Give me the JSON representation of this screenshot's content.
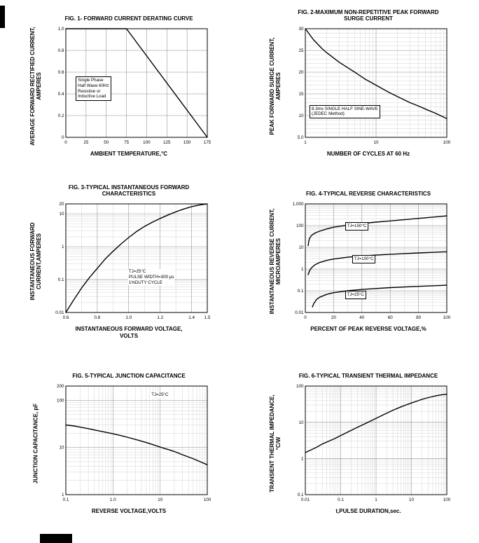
{
  "page": {
    "background": "#ffffff",
    "curve_color": "#000000",
    "grid_major_color": "#8d8d8d",
    "grid_minor_color": "#c9c9c9"
  },
  "chart_data": [
    {
      "type": "line",
      "title": "FIG. 1- FORWARD CURRENT DERATING CURVE",
      "xlabel": "AMBIENT TEMPERATURE,°C",
      "ylabel": "AVERAGE FORWARD RECTIFIED CURRENT,\nAMPERES",
      "x_axis": {
        "scale": "linear",
        "min": 0,
        "max": 175,
        "ticks": [
          0,
          25,
          50,
          75,
          100,
          125,
          150,
          175
        ],
        "tick_labels": [
          "0",
          "25",
          "50",
          "75",
          "100",
          "125",
          "150",
          "175"
        ]
      },
      "y_axis": {
        "scale": "linear",
        "min": 0,
        "max": 1.0,
        "ticks": [
          0,
          0.2,
          0.4,
          0.6,
          0.8,
          1.0
        ],
        "tick_labels": [
          "0",
          "0.2",
          "0.4",
          "0.6",
          "0.8",
          "1.0"
        ]
      },
      "series": [
        {
          "name": "derating",
          "points": [
            [
              0,
              1.0
            ],
            [
              75,
              1.0
            ],
            [
              175,
              0
            ]
          ]
        }
      ],
      "annotations": [
        {
          "lines": [
            "Single Phase",
            "Half Wave 60Hz",
            "Resistive or",
            "Inductive Load"
          ],
          "fx": 0.07,
          "fy": 0.44,
          "boxed": true
        }
      ]
    },
    {
      "type": "line",
      "title": "FIG. 2-MAXIMUM NON-REPETITIVE PEAK FORWARD\nSURGE CURRENT",
      "xlabel": "NUMBER OF CYCLES AT 60 Hz",
      "ylabel": "PEAK  FORWARD SURGE CURRENT,\nAMPERES",
      "x_axis": {
        "scale": "log",
        "min": 1,
        "max": 100,
        "ticks": [
          1,
          10,
          100
        ],
        "tick_labels": [
          "1",
          "10",
          "100"
        ]
      },
      "y_axis": {
        "scale": "linear",
        "min": 5,
        "max": 30,
        "ticks": [
          5,
          10,
          15,
          20,
          25,
          30
        ],
        "tick_labels": [
          "5.0",
          "10",
          "15",
          "20",
          "25",
          "30"
        ],
        "minor_step": 1
      },
      "series": [
        {
          "name": "surge-current",
          "points": [
            [
              1,
              30
            ],
            [
              1.3,
              27.5
            ],
            [
              1.7,
              25.5
            ],
            [
              2,
              24.5
            ],
            [
              3,
              22.3
            ],
            [
              4,
              21
            ],
            [
              5,
              20
            ],
            [
              7,
              18.4
            ],
            [
              10,
              17
            ],
            [
              15,
              15.4
            ],
            [
              20,
              14.4
            ],
            [
              30,
              13
            ],
            [
              40,
              12.2
            ],
            [
              50,
              11.5
            ],
            [
              70,
              10.5
            ],
            [
              100,
              9.3
            ]
          ]
        }
      ],
      "annotations": [
        {
          "lines": [
            "8.3ms SINGLE HALF SINE-WAVE",
            "(JEDEC Method)"
          ],
          "fx": 0.03,
          "fy": 0.7,
          "boxed": true
        }
      ]
    },
    {
      "type": "line",
      "title": "FIG. 3-TYPICAL INSTANTANEOUS FORWARD\nCHARACTERISTICS",
      "xlabel": "INSTANTANEOUS FORWARD VOLTAGE,\nVOLTS",
      "ylabel": "INSTANTANEOUS FORWARD\nCURRENT,AMPERES",
      "x_axis": {
        "scale": "linear",
        "min": 0.6,
        "max": 1.5,
        "ticks": [
          0.6,
          0.8,
          1.0,
          1.2,
          1.4,
          1.5
        ],
        "tick_labels": [
          "0.6",
          "0.8",
          "1.0",
          "1.2",
          "1.4",
          "1.5"
        ],
        "minor_step": 0.1
      },
      "y_axis": {
        "scale": "log",
        "min": 0.01,
        "max": 20,
        "ticks": [
          0.01,
          0.1,
          1,
          10,
          20
        ],
        "tick_labels": [
          "0.01",
          "0.1",
          "1",
          "10",
          "20"
        ]
      },
      "series": [
        {
          "name": "forward-characteristic",
          "points": [
            [
              0.6,
              0.01
            ],
            [
              0.65,
              0.024
            ],
            [
              0.7,
              0.055
            ],
            [
              0.75,
              0.115
            ],
            [
              0.8,
              0.22
            ],
            [
              0.85,
              0.42
            ],
            [
              0.9,
              0.72
            ],
            [
              0.95,
              1.2
            ],
            [
              1.0,
              1.9
            ],
            [
              1.05,
              2.9
            ],
            [
              1.1,
              4.1
            ],
            [
              1.15,
              5.5
            ],
            [
              1.2,
              7.2
            ],
            [
              1.25,
              9.2
            ],
            [
              1.3,
              11.5
            ],
            [
              1.35,
              14
            ],
            [
              1.4,
              16.5
            ],
            [
              1.45,
              18.5
            ],
            [
              1.5,
              20
            ]
          ]
        }
      ],
      "annotations": [
        {
          "lines": [
            "TJ=25°C",
            "PULSE WIDTH=300 μs",
            "1%DUTY CYCLE"
          ],
          "fx": 0.44,
          "fy": 0.6,
          "boxed": false
        }
      ]
    },
    {
      "type": "line",
      "title": "FIG. 4-TYPICAL REVERSE CHARACTERISTICS",
      "xlabel": "PERCENT OF PEAK REVERSE VOLTAGE,%",
      "ylabel": "INSTANTANEOUS REVERSE CURRENT,\nMICROAMPERES",
      "x_axis": {
        "scale": "linear",
        "min": 0,
        "max": 100,
        "ticks": [
          0,
          20,
          40,
          60,
          80,
          100
        ],
        "tick_labels": [
          "0",
          "20",
          "40",
          "60",
          "80",
          "100"
        ],
        "minor_step": 10
      },
      "y_axis": {
        "scale": "log",
        "min": 0.01,
        "max": 1000,
        "ticks": [
          0.01,
          0.1,
          1,
          10,
          100,
          1000
        ],
        "tick_labels": [
          "0.01",
          "0.1",
          "1",
          "10",
          "100",
          "1,000"
        ]
      },
      "series": [
        {
          "name": "tj-150c",
          "points": [
            [
              2,
              12
            ],
            [
              2.5,
              20
            ],
            [
              3,
              26
            ],
            [
              4,
              33
            ],
            [
              5,
              38
            ],
            [
              7,
              46
            ],
            [
              10,
              55
            ],
            [
              15,
              70
            ],
            [
              20,
              85
            ],
            [
              30,
              105
            ],
            [
              40,
              125
            ],
            [
              50,
              145
            ],
            [
              60,
              165
            ],
            [
              80,
              215
            ],
            [
              100,
              280
            ]
          ]
        },
        {
          "name": "tj-100c",
          "points": [
            [
              2,
              0.55
            ],
            [
              3,
              0.85
            ],
            [
              4,
              1.05
            ],
            [
              5,
              1.25
            ],
            [
              7,
              1.6
            ],
            [
              10,
              2.0
            ],
            [
              15,
              2.5
            ],
            [
              20,
              2.9
            ],
            [
              30,
              3.5
            ],
            [
              40,
              4.0
            ],
            [
              50,
              4.4
            ],
            [
              60,
              4.8
            ],
            [
              80,
              5.5
            ],
            [
              100,
              6.2
            ]
          ]
        },
        {
          "name": "tj-25c",
          "points": [
            [
              5,
              0.018
            ],
            [
              6,
              0.026
            ],
            [
              8,
              0.04
            ],
            [
              10,
              0.05
            ],
            [
              15,
              0.068
            ],
            [
              20,
              0.082
            ],
            [
              30,
              0.1
            ],
            [
              40,
              0.115
            ],
            [
              60,
              0.14
            ],
            [
              80,
              0.16
            ],
            [
              100,
              0.18
            ]
          ]
        }
      ],
      "annotations": [
        {
          "lines": [
            "TJ=150°C"
          ],
          "fx": 0.28,
          "fy": 0.17,
          "boxed": true
        },
        {
          "lines": [
            "TJ=100°C"
          ],
          "fx": 0.33,
          "fy": 0.47,
          "boxed": true
        },
        {
          "lines": [
            "TJ=25°C"
          ],
          "fx": 0.28,
          "fy": 0.8,
          "boxed": true
        }
      ]
    },
    {
      "type": "line",
      "title": "FIG. 5-TYPICAL JUNCTION CAPACITANCE",
      "xlabel": "REVERSE VOLTAGE,VOLTS",
      "ylabel": "JUNCTION CAPACITANCE, pF",
      "x_axis": {
        "scale": "log",
        "min": 0.1,
        "max": 100,
        "ticks": [
          0.1,
          1,
          10,
          100
        ],
        "tick_labels": [
          "0.1",
          "1.0",
          "10",
          "100"
        ]
      },
      "y_axis": {
        "scale": "log",
        "min": 1,
        "max": 200,
        "ticks": [
          1,
          10,
          100,
          200
        ],
        "tick_labels": [
          "1",
          "10",
          "100",
          "200"
        ]
      },
      "series": [
        {
          "name": "junction-capacitance",
          "points": [
            [
              0.1,
              30
            ],
            [
              0.15,
              28.5
            ],
            [
              0.2,
              27
            ],
            [
              0.3,
              25
            ],
            [
              0.5,
              22.5
            ],
            [
              0.7,
              21
            ],
            [
              1,
              19.5
            ],
            [
              1.5,
              17.8
            ],
            [
              2,
              16.5
            ],
            [
              3,
              14.8
            ],
            [
              5,
              12.8
            ],
            [
              7,
              11.5
            ],
            [
              10,
              10.2
            ],
            [
              15,
              9
            ],
            [
              20,
              8.2
            ],
            [
              30,
              7
            ],
            [
              50,
              5.8
            ],
            [
              70,
              5
            ],
            [
              100,
              4.3
            ]
          ]
        }
      ],
      "annotations": [
        {
          "lines": [
            "TJ=25°C"
          ],
          "fx": 0.6,
          "fy": 0.06,
          "boxed": false
        }
      ]
    },
    {
      "type": "line",
      "title": "FIG. 6-TYPICAL TRANSIENT THERMAL IMPEDANCE",
      "xlabel": "t,PULSE DURATION,sec.",
      "ylabel": "TRANSIENT THERMAL IMPEDANCE,\n°C/W",
      "x_axis": {
        "scale": "log",
        "min": 0.01,
        "max": 100,
        "ticks": [
          0.01,
          0.1,
          1,
          10,
          100
        ],
        "tick_labels": [
          "0.01",
          "0.1",
          "1",
          "10",
          "100"
        ]
      },
      "y_axis": {
        "scale": "log",
        "min": 0.1,
        "max": 100,
        "ticks": [
          0.1,
          1,
          10,
          100
        ],
        "tick_labels": [
          "0.1",
          "1",
          "10",
          "100"
        ]
      },
      "series": [
        {
          "name": "thermal-impedance",
          "points": [
            [
              0.01,
              1.45
            ],
            [
              0.015,
              1.75
            ],
            [
              0.02,
              2.0
            ],
            [
              0.03,
              2.5
            ],
            [
              0.05,
              3.1
            ],
            [
              0.07,
              3.6
            ],
            [
              0.1,
              4.3
            ],
            [
              0.15,
              5.2
            ],
            [
              0.2,
              6.0
            ],
            [
              0.3,
              7.3
            ],
            [
              0.5,
              9.2
            ],
            [
              0.7,
              10.8
            ],
            [
              1,
              12.8
            ],
            [
              1.5,
              15.5
            ],
            [
              2,
              17.8
            ],
            [
              3,
              21.5
            ],
            [
              5,
              26.5
            ],
            [
              7,
              30
            ],
            [
              10,
              34
            ],
            [
              15,
              39
            ],
            [
              20,
              43
            ],
            [
              30,
              48
            ],
            [
              50,
              54
            ],
            [
              70,
              57
            ],
            [
              100,
              60
            ]
          ]
        }
      ],
      "annotations": []
    }
  ]
}
